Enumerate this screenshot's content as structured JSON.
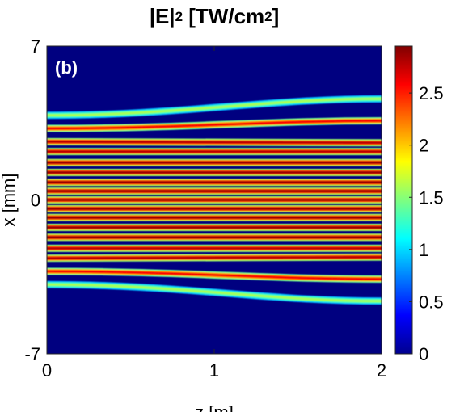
{
  "chart_data": {
    "type": "heatmap",
    "title": "|E|2 [TW/cm2]",
    "title_parts": {
      "base": "|E|",
      "sup1": "2",
      "mid": " [TW/cm",
      "sup2": "2",
      "end": "]"
    },
    "panel_label": "(b)",
    "xlabel": "z [m]",
    "ylabel": "x [mm]",
    "xlim": [
      0,
      2
    ],
    "ylim": [
      -7,
      7
    ],
    "xticks": [
      "0",
      "1",
      "2"
    ],
    "yticks": [
      "7",
      "0",
      "-7"
    ],
    "colorbar": {
      "colormap": "jet",
      "range": [
        0,
        2.95
      ],
      "ticks": [
        "0",
        "0.5",
        "1",
        "1.5",
        "2",
        "2.5"
      ]
    },
    "background_value": 0,
    "beamlets": [
      {
        "x_start": 3.85,
        "x_end": 4.6,
        "peak": 1.6
      },
      {
        "x_start": 3.25,
        "x_end": 3.6,
        "peak": 2.6
      },
      {
        "x_start": 2.65,
        "x_end": 2.6,
        "peak": 2.8
      },
      {
        "x_start": 2.2,
        "x_end": 2.2,
        "peak": 2.8
      },
      {
        "x_start": 1.7,
        "x_end": 1.7,
        "peak": 2.9
      },
      {
        "x_start": 1.25,
        "x_end": 1.25,
        "peak": 2.9
      },
      {
        "x_start": 0.8,
        "x_end": 0.8,
        "peak": 2.9
      },
      {
        "x_start": 0.4,
        "x_end": 0.4,
        "peak": 2.9
      },
      {
        "x_start": 0.0,
        "x_end": 0.0,
        "peak": 2.9
      },
      {
        "x_start": -0.4,
        "x_end": -0.4,
        "peak": 2.9
      },
      {
        "x_start": -0.8,
        "x_end": -0.8,
        "peak": 2.9
      },
      {
        "x_start": -1.25,
        "x_end": -1.25,
        "peak": 2.9
      },
      {
        "x_start": -1.7,
        "x_end": -1.7,
        "peak": 2.9
      },
      {
        "x_start": -2.2,
        "x_end": -2.2,
        "peak": 2.8
      },
      {
        "x_start": -2.65,
        "x_end": -2.6,
        "peak": 2.8
      },
      {
        "x_start": -3.25,
        "x_end": -3.6,
        "peak": 2.6
      },
      {
        "x_start": -3.85,
        "x_end": -4.6,
        "peak": 1.6
      }
    ]
  }
}
